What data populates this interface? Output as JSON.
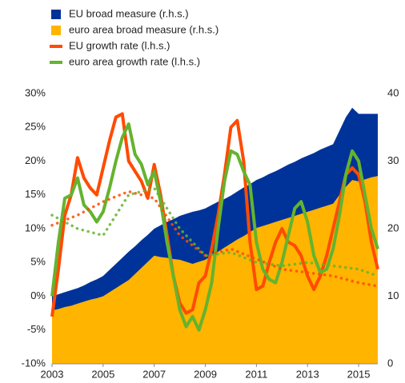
{
  "chart_data": {
    "type": "combo",
    "xlim": [
      2003,
      2015.75
    ],
    "xticks": [
      2003,
      2005,
      2007,
      2009,
      2011,
      2013,
      2015
    ],
    "ylim": [
      -10,
      30
    ],
    "yticks": [
      {
        "value": -10,
        "label": "-10%"
      },
      {
        "value": -5,
        "label": "-5%"
      },
      {
        "value": 0,
        "label": "0%"
      },
      {
        "value": 5,
        "label": "5%"
      },
      {
        "value": 10,
        "label": "10%"
      },
      {
        "value": 15,
        "label": "15%"
      },
      {
        "value": 20,
        "label": "20%"
      },
      {
        "value": 25,
        "label": "25%"
      },
      {
        "value": 30,
        "label": "30%"
      }
    ],
    "y2lim": [
      0,
      40
    ],
    "y2ticks": [
      0,
      10,
      20,
      30,
      40
    ],
    "grid": false,
    "legend": "top-left",
    "x": [
      2003,
      2003.25,
      2003.5,
      2003.75,
      2004,
      2004.25,
      2004.5,
      2004.75,
      2005,
      2005.25,
      2005.5,
      2005.75,
      2006,
      2006.25,
      2006.5,
      2006.75,
      2007,
      2007.25,
      2007.5,
      2007.75,
      2008,
      2008.25,
      2008.5,
      2008.75,
      2009,
      2009.25,
      2009.5,
      2009.75,
      2010,
      2010.25,
      2010.5,
      2010.75,
      2011,
      2011.25,
      2011.5,
      2011.75,
      2012,
      2012.25,
      2012.5,
      2012.75,
      2013,
      2013.25,
      2013.5,
      2013.75,
      2014,
      2014.25,
      2014.5,
      2014.75,
      2015,
      2015.25,
      2015.5,
      2015.75
    ],
    "series": [
      {
        "name": "EU broad measure (r.h.s.)",
        "color": "#003399",
        "style": "area",
        "axis": "y2",
        "values": [
          10,
          10.3,
          10.6,
          10.9,
          11.2,
          11.6,
          12.1,
          12.5,
          13,
          13.9,
          14.8,
          15.7,
          16.6,
          17.4,
          18.3,
          19.1,
          20,
          20.5,
          21,
          21.4,
          21.9,
          22.2,
          22.5,
          22.7,
          23,
          23.5,
          24,
          24.4,
          24.9,
          25.5,
          26.1,
          26.6,
          27.2,
          27.6,
          28.1,
          28.5,
          29,
          29.5,
          29.9,
          30.4,
          30.8,
          31.2,
          31.7,
          32.1,
          32.5,
          34.5,
          36.5,
          37.9,
          37,
          37,
          37,
          37
        ]
      },
      {
        "name": "euro area broad measure (r.h.s.)",
        "color": "#ffb400",
        "style": "area",
        "axis": "y2",
        "values": [
          7.9,
          8.1,
          8.4,
          8.6,
          8.9,
          9.2,
          9.5,
          9.7,
          10,
          10.6,
          11.2,
          11.8,
          12.4,
          13.3,
          14.2,
          15.1,
          16,
          15.8,
          15.7,
          15.5,
          15.4,
          15.1,
          14.8,
          15.1,
          15.4,
          16,
          16.6,
          17.2,
          17.8,
          18.4,
          18.9,
          19.5,
          20.1,
          20.4,
          20.7,
          21,
          21.3,
          21.6,
          21.9,
          22.2,
          22.5,
          22.8,
          23.1,
          23.4,
          23.7,
          25,
          26.2,
          27.2,
          27,
          27.3,
          27.6,
          27.8
        ]
      },
      {
        "name": "EU growth rate (l.h.s.)",
        "color": "#ff4b00",
        "style": "line",
        "values": [
          -3,
          4,
          12,
          15,
          20.5,
          17.5,
          16,
          15,
          19,
          23,
          26.5,
          27,
          20,
          18.5,
          17,
          14.5,
          19.5,
          15,
          9,
          3,
          -1,
          -2.5,
          -2,
          2,
          3,
          7,
          12,
          18,
          25,
          26,
          20,
          8,
          1,
          1.5,
          5,
          8,
          10,
          8,
          7.5,
          6,
          3,
          1,
          3,
          6,
          10,
          14,
          18,
          19,
          18,
          14,
          8,
          4
        ]
      },
      {
        "name": "euro area growth rate (l.h.s.)",
        "color": "#65b32e",
        "style": "line",
        "values": [
          0,
          8,
          14.5,
          15,
          17.5,
          13.5,
          12.5,
          11,
          12.5,
          16,
          20,
          23.5,
          25.5,
          21,
          19.5,
          16.5,
          18.5,
          14,
          8,
          3,
          -2,
          -4.5,
          -3,
          -5,
          -2,
          2,
          10,
          17,
          21.5,
          21,
          18.5,
          16.5,
          8,
          4,
          2.5,
          2,
          5,
          9,
          13,
          14,
          11,
          6,
          3.5,
          4,
          7,
          12,
          18,
          21.5,
          20,
          15,
          10,
          7
        ]
      },
      {
        "color": "#ff4b00",
        "style": "dotted",
        "x": [
          2003,
          2004,
          2005,
          2006,
          2007,
          2008,
          2009,
          2010,
          2011,
          2012,
          2013,
          2014,
          2015,
          2015.75
        ],
        "values": [
          10.5,
          12,
          14,
          15.5,
          14.5,
          9,
          6,
          7,
          5.5,
          4,
          3.5,
          3,
          2,
          1.5
        ]
      },
      {
        "color": "#65b32e",
        "style": "dotted",
        "x": [
          2003,
          2004,
          2005,
          2006,
          2007,
          2008,
          2009,
          2010,
          2011,
          2012,
          2013,
          2014,
          2015,
          2015.75
        ],
        "values": [
          12,
          10,
          9,
          15,
          16,
          10,
          6,
          6.5,
          5,
          4.5,
          5,
          4.5,
          4,
          3
        ]
      }
    ]
  }
}
